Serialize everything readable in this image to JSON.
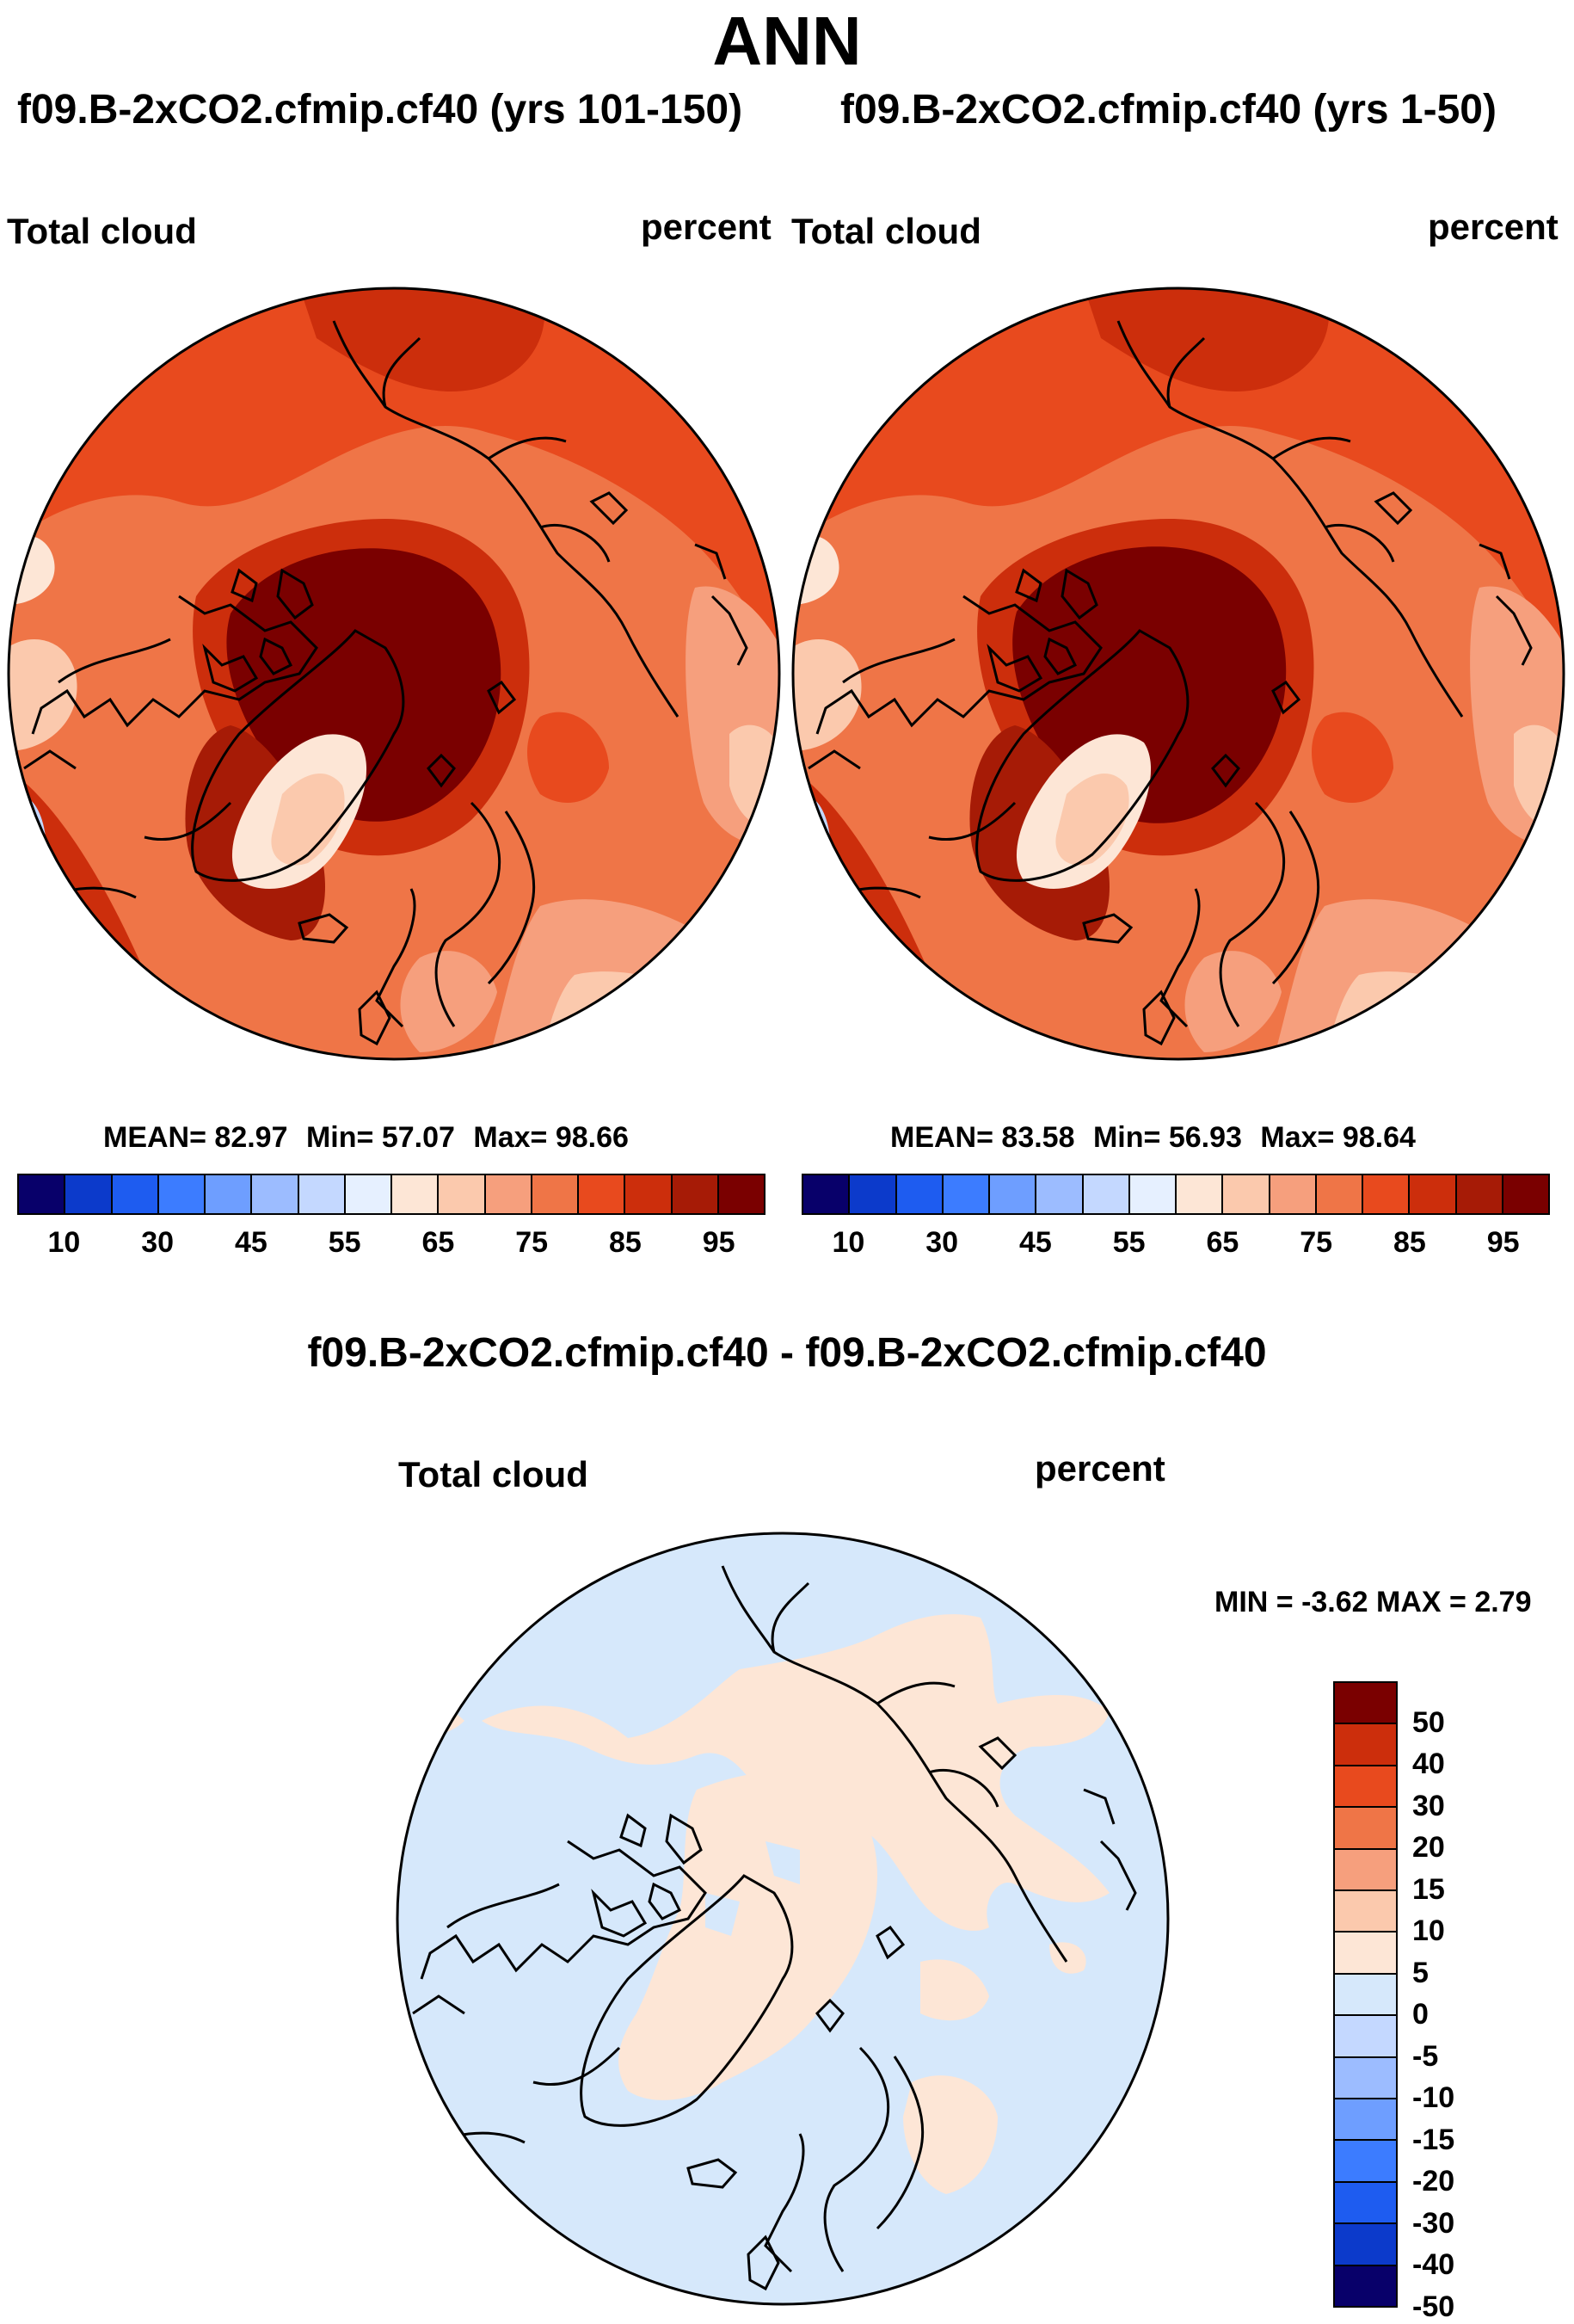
{
  "title": "ANN",
  "colors": {
    "abs_scale": [
      "#08006a",
      "#0c3acb",
      "#1e5cf0",
      "#3c7cff",
      "#6e9eff",
      "#9cbcff",
      "#c4d8ff",
      "#e6f0ff",
      "#fde6d6",
      "#fbc9ad",
      "#f69f7d",
      "#ef7547",
      "#e84a1e",
      "#cc2e0c",
      "#a61b06",
      "#7a0000"
    ],
    "diff_scale": [
      "#08006a",
      "#0c3acb",
      "#1e5cf0",
      "#3c7cff",
      "#6e9eff",
      "#9cbcff",
      "#c4d8ff",
      "#d6e8fb",
      "#fde6d6",
      "#fbc9ad",
      "#f69f7d",
      "#ef7547",
      "#e84a1e",
      "#cc2e0c",
      "#7a0000"
    ]
  },
  "panels": [
    {
      "title": "f09.B-2xCO2.cfmip.cf40 (yrs 101-150)",
      "left_label": "Total cloud",
      "right_label": "percent",
      "stats": {
        "mean_label": "MEAN=",
        "mean": "82.97",
        "min_label": "Min=",
        "min": "57.07",
        "max_label": "Max=",
        "max": "98.66"
      },
      "ticks": [
        "10",
        "30",
        "45",
        "55",
        "65",
        "75",
        "85",
        "95"
      ]
    },
    {
      "title": "f09.B-2xCO2.cfmip.cf40 (yrs 1-50)",
      "left_label": "Total cloud",
      "right_label": "percent",
      "stats": {
        "mean_label": "MEAN=",
        "mean": "83.58",
        "min_label": "Min=",
        "min": "56.93",
        "max_label": "Max=",
        "max": "98.64"
      },
      "ticks": [
        "10",
        "30",
        "45",
        "55",
        "65",
        "75",
        "85",
        "95"
      ]
    }
  ],
  "difference": {
    "title": "f09.B-2xCO2.cfmip.cf40 - f09.B-2xCO2.cfmip.cf40",
    "left_label": "Total cloud",
    "right_label": "percent",
    "minmax": "MIN =  -3.62 MAX =   2.79",
    "ticks": [
      "50",
      "40",
      "30",
      "20",
      "15",
      "10",
      "5",
      "0",
      "-5",
      "-10",
      "-15",
      "-20",
      "-30",
      "-40",
      "-50"
    ]
  }
}
